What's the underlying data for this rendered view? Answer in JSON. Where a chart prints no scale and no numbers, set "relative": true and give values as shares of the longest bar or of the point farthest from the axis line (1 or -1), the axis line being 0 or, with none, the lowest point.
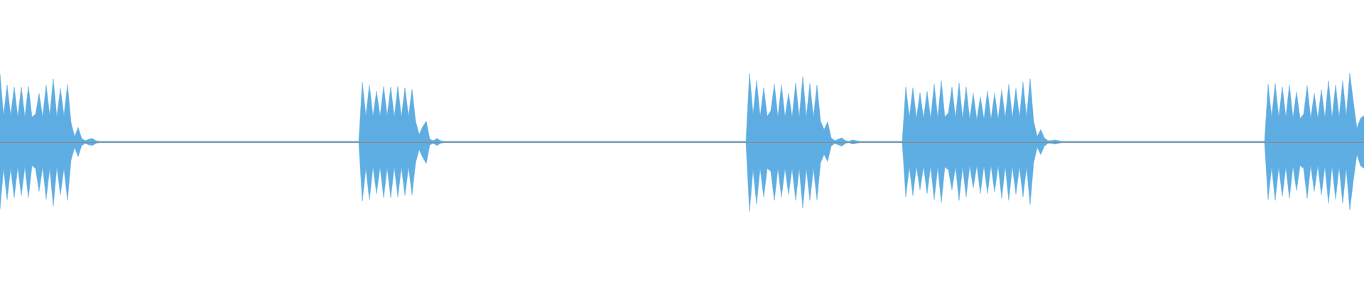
{
  "chart_data": {
    "type": "area",
    "relative": true,
    "categories": [
      null,
      null,
      null,
      null,
      null,
      null,
      null,
      null,
      null,
      null,
      null,
      null,
      null,
      null,
      null,
      null,
      null,
      null,
      null,
      null,
      null,
      null,
      null,
      null,
      null,
      null,
      null,
      null,
      null,
      null,
      null,
      null,
      null,
      null,
      null,
      null,
      null,
      null,
      null,
      null,
      null,
      null,
      null,
      null,
      null,
      null,
      null,
      null,
      null,
      null,
      null,
      null,
      null,
      null,
      null,
      null,
      null,
      null,
      null,
      null,
      null,
      null,
      null,
      null,
      null,
      null,
      null,
      null,
      null,
      null,
      null,
      null,
      null,
      null,
      null,
      null,
      null,
      null,
      null,
      null,
      null,
      null,
      null,
      null,
      null,
      null,
      null,
      null,
      null,
      null,
      null,
      null,
      null,
      null,
      null,
      null,
      null,
      null,
      null,
      null,
      null,
      null,
      null,
      null,
      null,
      null,
      null,
      null,
      null,
      null,
      null,
      null,
      null,
      null,
      null,
      null,
      null,
      null,
      null,
      null,
      null,
      null,
      null,
      null,
      null,
      null,
      null,
      null,
      null,
      null,
      null,
      null,
      null,
      null,
      null,
      null,
      null,
      null,
      null,
      null,
      null,
      null,
      null,
      null,
      null,
      null,
      null,
      null,
      null,
      null,
      null,
      null,
      null,
      null,
      null,
      null,
      null,
      null,
      null,
      null,
      null,
      null,
      null,
      null,
      null,
      null,
      null,
      null,
      null,
      null,
      null,
      null,
      null,
      null,
      null,
      null,
      null,
      null,
      null,
      null,
      null,
      null,
      null,
      null,
      null,
      null,
      null,
      null,
      null,
      null,
      null,
      null,
      null,
      null,
      null,
      null,
      null,
      null,
      null,
      null,
      null,
      null,
      null,
      null,
      null,
      null,
      null,
      null,
      null,
      null,
      null,
      null,
      null,
      null,
      null,
      null,
      null,
      null,
      null,
      null,
      null,
      null,
      null,
      null,
      null,
      null,
      null,
      null,
      null,
      null,
      null,
      null,
      null,
      null,
      null,
      null,
      null,
      null,
      null,
      null,
      null,
      null,
      null,
      null,
      null,
      null,
      null,
      null,
      null,
      null,
      null,
      null,
      null,
      null,
      null,
      null,
      null,
      null,
      null,
      null,
      null,
      null,
      null,
      null,
      null,
      null,
      null,
      null,
      null,
      null,
      null,
      null,
      null,
      null,
      null,
      null,
      null,
      null,
      null,
      null,
      null,
      null,
      null,
      null,
      null,
      null,
      null,
      null,
      null,
      null,
      null,
      null,
      null,
      null,
      null,
      null,
      null,
      null,
      null,
      null,
      null,
      null,
      null,
      null,
      null,
      null,
      null,
      null,
      null,
      null,
      null,
      null,
      null,
      null,
      null,
      null,
      null,
      null,
      null,
      null,
      null,
      null,
      null,
      null,
      null,
      null,
      null,
      null,
      null,
      null,
      null,
      null,
      null,
      null,
      null,
      null,
      null,
      null,
      null,
      null,
      null,
      null,
      null,
      null,
      null,
      null,
      null,
      null,
      null,
      null,
      null,
      null,
      null,
      null,
      null,
      null,
      null,
      null,
      null,
      null,
      null,
      null,
      null,
      null,
      null,
      null,
      null,
      null,
      null,
      null,
      null,
      null,
      null,
      null,
      null,
      null,
      null,
      null,
      null,
      null,
      null,
      null,
      null,
      null,
      null
    ],
    "series": [
      {
        "color": "#5dade2",
        "values": [
          0.98,
          0.38,
          0.82,
          0.38,
          0.79,
          0.36,
          0.79,
          0.36,
          0.8,
          0.36,
          0.4,
          0.7,
          0.36,
          0.82,
          0.38,
          0.91,
          0.36,
          0.77,
          0.38,
          0.83,
          0.28,
          0.08,
          0.21,
          0.05,
          0.02,
          0.04,
          0.05,
          0.02,
          0.01,
          0.01,
          0.01,
          0.01,
          0.01,
          0.01,
          0.01,
          0.01,
          0.01,
          0.01,
          0.01,
          0.01,
          0.01,
          0.01,
          0.01,
          0.01,
          0.01,
          0.01,
          0.01,
          0.01,
          0.01,
          0.01,
          0.01,
          0.01,
          0.01,
          0.01,
          0.01,
          0.01,
          0.01,
          0.01,
          0.01,
          0.01,
          0.01,
          0.01,
          0.01,
          0.01,
          0.01,
          0.01,
          0.01,
          0.01,
          0.01,
          0.01,
          0.01,
          0.01,
          0.01,
          0.01,
          0.01,
          0.01,
          0.01,
          0.01,
          0.01,
          0.01,
          0.01,
          0.01,
          0.01,
          0.01,
          0.01,
          0.01,
          0.01,
          0.01,
          0.01,
          0.01,
          0.01,
          0.01,
          0.01,
          0.01,
          0.01,
          0.01,
          0.01,
          0.01,
          0.01,
          0.01,
          0.01,
          0.01,
          0.86,
          0.38,
          0.82,
          0.37,
          0.73,
          0.37,
          0.8,
          0.38,
          0.79,
          0.36,
          0.8,
          0.36,
          0.78,
          0.37,
          0.76,
          0.3,
          0.11,
          0.22,
          0.3,
          0.04,
          0.02,
          0.05,
          0.02,
          0.01,
          0.01,
          0.01,
          0.01,
          0.01,
          0.01,
          0.01,
          0.01,
          0.01,
          0.01,
          0.01,
          0.01,
          0.01,
          0.01,
          0.01,
          0.01,
          0.01,
          0.01,
          0.01,
          0.01,
          0.01,
          0.01,
          0.01,
          0.01,
          0.01,
          0.01,
          0.01,
          0.01,
          0.01,
          0.01,
          0.01,
          0.01,
          0.01,
          0.01,
          0.01,
          0.01,
          0.01,
          0.01,
          0.01,
          0.01,
          0.01,
          0.01,
          0.01,
          0.01,
          0.01,
          0.01,
          0.01,
          0.01,
          0.01,
          0.01,
          0.01,
          0.01,
          0.01,
          0.01,
          0.01,
          0.01,
          0.01,
          0.01,
          0.01,
          0.01,
          0.01,
          0.01,
          0.01,
          0.01,
          0.01,
          0.01,
          0.01,
          0.01,
          0.01,
          0.01,
          0.01,
          0.01,
          0.01,
          0.01,
          0.01,
          0.01,
          0.01,
          0.01,
          0.01,
          0.01,
          0.01,
          0.01,
          0.01,
          0.01,
          0.01,
          0.01,
          0.99,
          0.4,
          0.88,
          0.37,
          0.78,
          0.37,
          0.45,
          0.83,
          0.36,
          0.82,
          0.36,
          0.7,
          0.36,
          0.85,
          0.36,
          0.94,
          0.36,
          0.84,
          0.36,
          0.82,
          0.3,
          0.18,
          0.29,
          0.06,
          0.02,
          0.04,
          0.06,
          0.02,
          0.01,
          0.03,
          0.02,
          0.01,
          0.01,
          0.01,
          0.01,
          0.01,
          0.01,
          0.01,
          0.01,
          0.01,
          0.01,
          0.01,
          0.01,
          0.01,
          0.79,
          0.36,
          0.78,
          0.34,
          0.71,
          0.34,
          0.73,
          0.34,
          0.83,
          0.35,
          0.88,
          0.36,
          0.42,
          0.79,
          0.35,
          0.85,
          0.34,
          0.79,
          0.33,
          0.7,
          0.32,
          0.65,
          0.33,
          0.73,
          0.33,
          0.7,
          0.33,
          0.75,
          0.35,
          0.83,
          0.35,
          0.77,
          0.36,
          0.86,
          0.36,
          0.91,
          0.3,
          0.08,
          0.18,
          0.06,
          0.02,
          0.02,
          0.03,
          0.02,
          0.01,
          0.01,
          0.01,
          0.01,
          0.01,
          0.01,
          0.01,
          0.01,
          0.01,
          0.01,
          0.01,
          0.01,
          0.01,
          0.01,
          0.01,
          0.01,
          0.01,
          0.01,
          0.01,
          0.01,
          0.01,
          0.01,
          0.01,
          0.01,
          0.01,
          0.01,
          0.01,
          0.01,
          0.01,
          0.01,
          0.01,
          0.01,
          0.01,
          0.01,
          0.01,
          0.01,
          0.01,
          0.01,
          0.01,
          0.01,
          0.01,
          0.01,
          0.01,
          0.01,
          0.01,
          0.01,
          0.01,
          0.01,
          0.01,
          0.01,
          0.01,
          0.01,
          0.01,
          0.01,
          0.01,
          0.01,
          0.01,
          0.01,
          0.83,
          0.36,
          0.84,
          0.36,
          0.79,
          0.36,
          0.82,
          0.35,
          0.72,
          0.34,
          0.4,
          0.81,
          0.34,
          0.7,
          0.34,
          0.75,
          0.35,
          0.88,
          0.35,
          0.82,
          0.36,
          0.88,
          0.38,
          0.99,
          0.58,
          0.2,
          0.34,
          0.38
        ]
      },
      {
        "color": "#5eaee3",
        "values": [
          -0.97,
          -0.38,
          -0.83,
          -0.38,
          -0.8,
          -0.36,
          -0.77,
          -0.36,
          -0.8,
          -0.34,
          -0.38,
          -0.71,
          -0.36,
          -0.82,
          -0.38,
          -0.92,
          -0.36,
          -0.76,
          -0.38,
          -0.84,
          -0.26,
          -0.08,
          -0.21,
          -0.05,
          -0.02,
          -0.04,
          -0.05,
          -0.02,
          -0.01,
          -0.01,
          -0.01,
          -0.01,
          -0.01,
          -0.01,
          -0.01,
          -0.01,
          -0.01,
          -0.01,
          -0.01,
          -0.01,
          -0.01,
          -0.01,
          -0.01,
          -0.01,
          -0.01,
          -0.01,
          -0.01,
          -0.01,
          -0.01,
          -0.01,
          -0.01,
          -0.01,
          -0.01,
          -0.01,
          -0.01,
          -0.01,
          -0.01,
          -0.01,
          -0.01,
          -0.01,
          -0.01,
          -0.01,
          -0.01,
          -0.01,
          -0.01,
          -0.01,
          -0.01,
          -0.01,
          -0.01,
          -0.01,
          -0.01,
          -0.01,
          -0.01,
          -0.01,
          -0.01,
          -0.01,
          -0.01,
          -0.01,
          -0.01,
          -0.01,
          -0.01,
          -0.01,
          -0.01,
          -0.01,
          -0.01,
          -0.01,
          -0.01,
          -0.01,
          -0.01,
          -0.01,
          -0.01,
          -0.01,
          -0.01,
          -0.01,
          -0.01,
          -0.01,
          -0.01,
          -0.01,
          -0.01,
          -0.01,
          -0.01,
          -0.01,
          -0.85,
          -0.38,
          -0.83,
          -0.36,
          -0.74,
          -0.36,
          -0.8,
          -0.37,
          -0.8,
          -0.36,
          -0.79,
          -0.36,
          -0.77,
          -0.36,
          -0.76,
          -0.3,
          -0.11,
          -0.22,
          -0.31,
          -0.04,
          -0.02,
          -0.05,
          -0.02,
          -0.01,
          -0.01,
          -0.01,
          -0.01,
          -0.01,
          -0.01,
          -0.01,
          -0.01,
          -0.01,
          -0.01,
          -0.01,
          -0.01,
          -0.01,
          -0.01,
          -0.01,
          -0.01,
          -0.01,
          -0.01,
          -0.01,
          -0.01,
          -0.01,
          -0.01,
          -0.01,
          -0.01,
          -0.01,
          -0.01,
          -0.01,
          -0.01,
          -0.01,
          -0.01,
          -0.01,
          -0.01,
          -0.01,
          -0.01,
          -0.01,
          -0.01,
          -0.01,
          -0.01,
          -0.01,
          -0.01,
          -0.01,
          -0.01,
          -0.01,
          -0.01,
          -0.01,
          -0.01,
          -0.01,
          -0.01,
          -0.01,
          -0.01,
          -0.01,
          -0.01,
          -0.01,
          -0.01,
          -0.01,
          -0.01,
          -0.01,
          -0.01,
          -0.01,
          -0.01,
          -0.01,
          -0.01,
          -0.01,
          -0.01,
          -0.01,
          -0.01,
          -0.01,
          -0.01,
          -0.01,
          -0.01,
          -0.01,
          -0.01,
          -0.01,
          -0.01,
          -0.01,
          -0.01,
          -0.01,
          -0.01,
          -0.01,
          -0.01,
          -0.01,
          -0.01,
          -0.01,
          -0.01,
          -0.01,
          -0.01,
          -1,
          -0.4,
          -0.89,
          -0.38,
          -0.79,
          -0.38,
          -0.42,
          -0.84,
          -0.38,
          -0.79,
          -0.38,
          -0.75,
          -0.38,
          -0.84,
          -0.38,
          -0.95,
          -0.38,
          -0.84,
          -0.38,
          -0.83,
          -0.3,
          -0.18,
          -0.28,
          -0.06,
          -0.02,
          -0.04,
          -0.06,
          -0.02,
          -0.01,
          -0.03,
          -0.02,
          -0.01,
          -0.01,
          -0.01,
          -0.01,
          -0.01,
          -0.01,
          -0.01,
          -0.01,
          -0.01,
          -0.01,
          -0.01,
          -0.01,
          -0.01,
          -0.79,
          -0.36,
          -0.77,
          -0.35,
          -0.69,
          -0.35,
          -0.74,
          -0.35,
          -0.83,
          -0.36,
          -0.87,
          -0.36,
          -0.4,
          -0.69,
          -0.36,
          -0.84,
          -0.36,
          -0.79,
          -0.34,
          -0.66,
          -0.34,
          -0.74,
          -0.34,
          -0.74,
          -0.34,
          -0.72,
          -0.34,
          -0.81,
          -0.35,
          -0.84,
          -0.35,
          -0.75,
          -0.36,
          -0.79,
          -0.36,
          -0.9,
          -0.3,
          -0.08,
          -0.18,
          -0.06,
          -0.02,
          -0.02,
          -0.03,
          -0.02,
          -0.01,
          -0.01,
          -0.01,
          -0.01,
          -0.01,
          -0.01,
          -0.01,
          -0.01,
          -0.01,
          -0.01,
          -0.01,
          -0.01,
          -0.01,
          -0.01,
          -0.01,
          -0.01,
          -0.01,
          -0.01,
          -0.01,
          -0.01,
          -0.01,
          -0.01,
          -0.01,
          -0.01,
          -0.01,
          -0.01,
          -0.01,
          -0.01,
          -0.01,
          -0.01,
          -0.01,
          -0.01,
          -0.01,
          -0.01,
          -0.01,
          -0.01,
          -0.01,
          -0.01,
          -0.01,
          -0.01,
          -0.01,
          -0.01,
          -0.01,
          -0.01,
          -0.01,
          -0.01,
          -0.01,
          -0.01,
          -0.01,
          -0.01,
          -0.01,
          -0.01,
          -0.01,
          -0.01,
          -0.01,
          -0.01,
          -0.01,
          -0.01,
          -0.83,
          -0.36,
          -0.84,
          -0.36,
          -0.78,
          -0.36,
          -0.81,
          -0.35,
          -0.7,
          -0.34,
          -0.38,
          -0.81,
          -0.34,
          -0.71,
          -0.34,
          -0.76,
          -0.35,
          -0.88,
          -0.35,
          -0.82,
          -0.36,
          -0.88,
          -0.38,
          -0.98,
          -0.55,
          -0.18,
          -0.34,
          -0.38
        ]
      }
    ]
  }
}
